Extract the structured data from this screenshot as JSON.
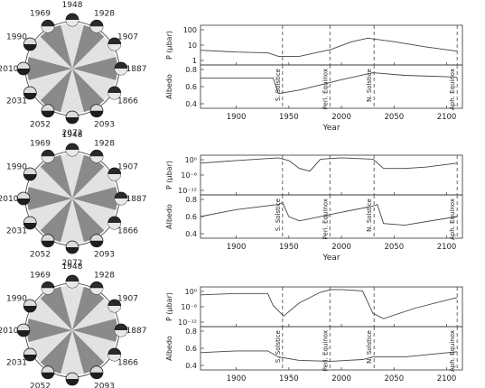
{
  "chart_data": [
    {
      "type": "line",
      "year_labels": [
        "1948",
        "1928",
        "1907",
        "1887",
        "1866",
        "2093",
        "2072",
        "2052",
        "2031",
        "2010",
        "1990",
        "1969"
      ],
      "year_nodes": [
        {
          "year": "1948",
          "dark_top": true
        },
        {
          "year": "1928",
          "dark_top": true
        },
        {
          "year": "1907",
          "dark_top": true
        },
        {
          "year": "1887",
          "dark_top": true
        },
        {
          "year": "1866",
          "dark_top": true
        },
        {
          "year": "2093",
          "dark_top": false
        },
        {
          "year": "2072",
          "dark_top": false
        },
        {
          "year": "2052",
          "dark_top": false
        },
        {
          "year": "2031",
          "dark_top": false
        },
        {
          "year": "2010",
          "dark_top": false
        },
        {
          "year": "1990",
          "dark_top": false
        },
        {
          "year": "1969",
          "dark_top": true
        }
      ],
      "markers": [
        "S. Solstice",
        "Peri. Equinox",
        "N. Solstice",
        "Aph. Equinox"
      ],
      "marker_years": [
        1944,
        1989,
        2031,
        2110
      ],
      "top_ylabel": "P (μbar)",
      "top_log": true,
      "top_yticks": [
        "100",
        "10",
        "1"
      ],
      "top_ylim": [
        -0.3,
        2
      ],
      "top_series": {
        "x": [
          1866,
          1900,
          1930,
          1940,
          1960,
          1990,
          2010,
          2025,
          2050,
          2080,
          2110
        ],
        "log10_y": [
          0.55,
          0.45,
          0.4,
          0.2,
          0.2,
          0.6,
          1.05,
          1.25,
          1.05,
          0.75,
          0.5
        ]
      },
      "bottom_ylabel": "Albedo",
      "bottom_yticks": [
        "0.8",
        "0.6",
        "0.4"
      ],
      "bottom_ylim": [
        0.35,
        0.85
      ],
      "bottom_series": {
        "x": [
          1866,
          1900,
          1935,
          1940,
          1945,
          1960,
          2000,
          2030,
          2060,
          2110
        ],
        "y": [
          0.7,
          0.7,
          0.7,
          0.52,
          0.53,
          0.56,
          0.68,
          0.76,
          0.73,
          0.71
        ]
      },
      "xticks": [
        "1900",
        "1950",
        "2000",
        "2050",
        "2100"
      ],
      "xlim": [
        1866,
        2115
      ],
      "xlabel": "Year"
    },
    {
      "type": "line",
      "year_labels": [
        "1948",
        "1928",
        "1907",
        "1887",
        "1866",
        "2093",
        "2072",
        "2052",
        "2031",
        "2010",
        "1990",
        "1969"
      ],
      "year_nodes": [
        {
          "year": "1948",
          "dark_top": true
        },
        {
          "year": "1928",
          "dark_top": true
        },
        {
          "year": "1907",
          "dark_top": true
        },
        {
          "year": "1887",
          "dark_top": true
        },
        {
          "year": "1866",
          "dark_top": true
        },
        {
          "year": "2093",
          "dark_top": false
        },
        {
          "year": "2072",
          "dark_top": false
        },
        {
          "year": "2052",
          "dark_top": false
        },
        {
          "year": "2031",
          "dark_top": false
        },
        {
          "year": "2010",
          "dark_top": false
        },
        {
          "year": "1990",
          "dark_top": false
        },
        {
          "year": "1969",
          "dark_top": true
        }
      ],
      "markers": [
        "S. Solstice",
        "Peri. Equinox",
        "N. Solstice",
        "Aph. Equinox"
      ],
      "marker_years": [
        1944,
        1989,
        2031,
        2110
      ],
      "top_ylabel": "P (μbar)",
      "top_log": true,
      "top_yticks": [
        "10⁰",
        "10⁻⁶",
        "10⁻¹²"
      ],
      "top_ylim": [
        -13,
        2
      ],
      "top_series": {
        "x": [
          1866,
          1900,
          1940,
          1950,
          1960,
          1970,
          1980,
          2000,
          2030,
          2040,
          2060,
          2080,
          2110
        ],
        "log10_y": [
          -1,
          0,
          1,
          0,
          -3,
          -4,
          0.5,
          1,
          0.5,
          -3,
          -3,
          -2.5,
          -1
        ]
      },
      "bottom_ylabel": "Albedo",
      "bottom_yticks": [
        "0.8",
        "0.6",
        "0.4"
      ],
      "bottom_ylim": [
        0.35,
        0.85
      ],
      "bottom_series": {
        "x": [
          1866,
          1900,
          1940,
          1944,
          1950,
          1960,
          2000,
          2030,
          2034,
          2040,
          2060,
          2110
        ],
        "y": [
          0.6,
          0.68,
          0.74,
          0.76,
          0.6,
          0.55,
          0.65,
          0.72,
          0.74,
          0.52,
          0.5,
          0.6
        ]
      },
      "xticks": [
        "1900",
        "1950",
        "2000",
        "2050",
        "2100"
      ],
      "xlim": [
        1866,
        2115
      ],
      "xlabel": "Year"
    },
    {
      "type": "line",
      "year_labels": [
        "1948",
        "1928",
        "1907",
        "1887",
        "1866",
        "2093",
        "2072",
        "2052",
        "2031",
        "2010",
        "1990",
        "1969"
      ],
      "year_nodes": [
        {
          "year": "1948",
          "dark_top": true
        },
        {
          "year": "1928",
          "dark_top": true
        },
        {
          "year": "1907",
          "dark_top": true
        },
        {
          "year": "1887",
          "dark_top": true
        },
        {
          "year": "1866",
          "dark_top": true
        },
        {
          "year": "2093",
          "dark_top": false
        },
        {
          "year": "2072",
          "dark_top": false
        },
        {
          "year": "2052",
          "dark_top": false
        },
        {
          "year": "2031",
          "dark_top": false
        },
        {
          "year": "2010",
          "dark_top": false
        },
        {
          "year": "1990",
          "dark_top": false
        },
        {
          "year": "1969",
          "dark_top": true
        }
      ],
      "markers": [
        "S. Solstice",
        "Peri. Equinox",
        "N. Solstice",
        "Aph. Equinox"
      ],
      "marker_years": [
        1944,
        1989,
        2031,
        2110
      ],
      "top_ylabel": "P (μbar)",
      "top_log": true,
      "top_yticks": [
        "10⁰",
        "10⁻⁶",
        "10⁻¹²"
      ],
      "top_ylim": [
        -13,
        2
      ],
      "top_series": {
        "x": [
          1866,
          1900,
          1930,
          1935,
          1945,
          1960,
          1980,
          1990,
          2000,
          2020,
          2030,
          2040,
          2070,
          2110
        ],
        "log10_y": [
          -1,
          -0.5,
          -0.5,
          -5,
          -9,
          -4,
          0,
          1,
          1,
          0.5,
          -8,
          -10,
          -6,
          -2
        ]
      },
      "bottom_ylabel": "Albedo",
      "bottom_yticks": [
        "0.8",
        "0.6",
        "0.4"
      ],
      "bottom_ylim": [
        0.35,
        0.85
      ],
      "bottom_series": {
        "x": [
          1866,
          1900,
          1930,
          1940,
          1960,
          1990,
          2020,
          2030,
          2040,
          2060,
          2110
        ],
        "y": [
          0.55,
          0.57,
          0.57,
          0.5,
          0.46,
          0.45,
          0.47,
          0.5,
          0.5,
          0.5,
          0.56
        ]
      },
      "xticks": [
        "1900",
        "1950",
        "2000",
        "2050",
        "2100"
      ],
      "xlim": [
        1866,
        2115
      ],
      "xlabel": ""
    }
  ]
}
